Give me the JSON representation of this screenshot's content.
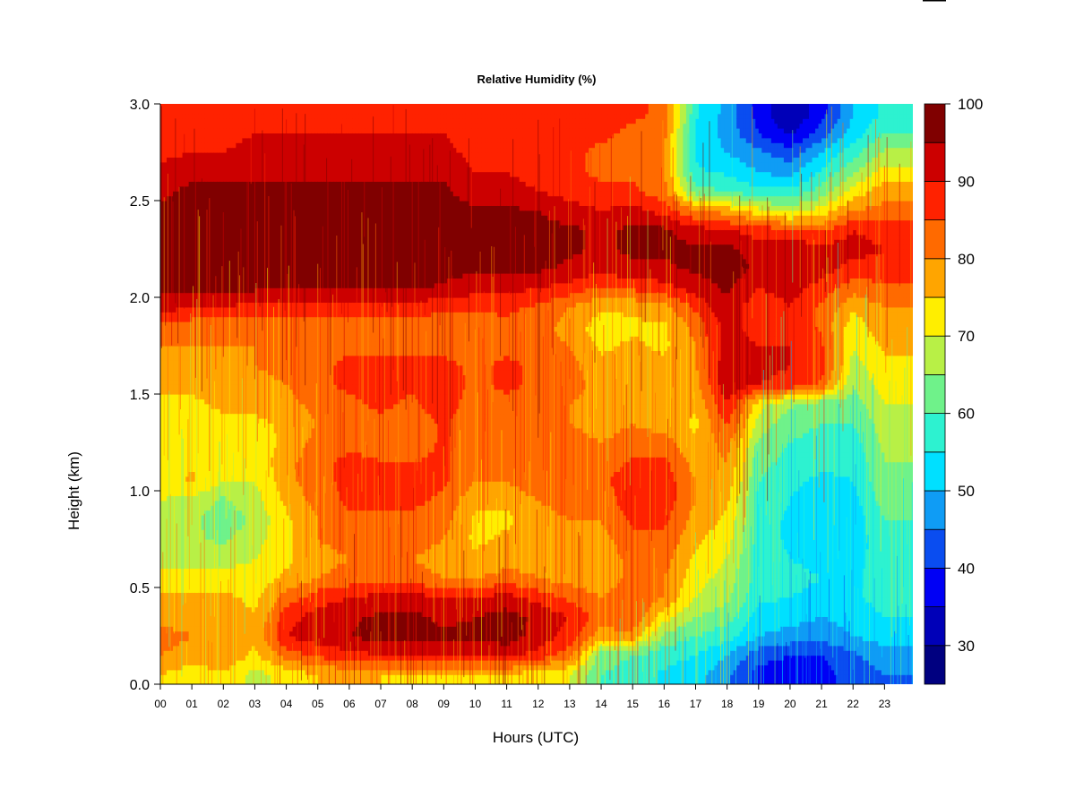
{
  "chart_data": {
    "type": "heatmap",
    "title": "Relative Humidity (%)",
    "xlabel": "Hours (UTC)",
    "ylabel": "Height (km)",
    "xlim": [
      0,
      23.9
    ],
    "ylim": [
      0.0,
      3.0
    ],
    "x_ticks": [
      "00",
      "01",
      "02",
      "03",
      "04",
      "05",
      "06",
      "07",
      "08",
      "09",
      "10",
      "11",
      "12",
      "13",
      "14",
      "15",
      "16",
      "17",
      "18",
      "19",
      "20",
      "21",
      "22",
      "23"
    ],
    "y_ticks": [
      "0.0",
      "0.5",
      "1.0",
      "1.5",
      "2.0",
      "2.5",
      "3.0"
    ],
    "colorbar": {
      "range": [
        25,
        100
      ],
      "tick_labels": [
        "30",
        "40",
        "50",
        "60",
        "70",
        "80",
        "90",
        "100"
      ],
      "levels": [
        {
          "min": 25,
          "max": 30,
          "color": "#000080"
        },
        {
          "min": 30,
          "max": 35,
          "color": "#0000b8"
        },
        {
          "min": 35,
          "max": 40,
          "color": "#0000f5"
        },
        {
          "min": 40,
          "max": 45,
          "color": "#0a4df0"
        },
        {
          "min": 45,
          "max": 50,
          "color": "#0f9cf5"
        },
        {
          "min": 50,
          "max": 55,
          "color": "#00e0ff"
        },
        {
          "min": 55,
          "max": 60,
          "color": "#2df2d0"
        },
        {
          "min": 60,
          "max": 65,
          "color": "#6ff28a"
        },
        {
          "min": 65,
          "max": 70,
          "color": "#b8f046"
        },
        {
          "min": 70,
          "max": 75,
          "color": "#ffee00"
        },
        {
          "min": 75,
          "max": 80,
          "color": "#ffa500"
        },
        {
          "min": 80,
          "max": 85,
          "color": "#ff6a00"
        },
        {
          "min": 85,
          "max": 90,
          "color": "#ff2200"
        },
        {
          "min": 90,
          "max": 95,
          "color": "#cc0000"
        },
        {
          "min": 95,
          "max": 100,
          "color": "#800000"
        }
      ]
    },
    "grid_heights_km": [
      0.05,
      0.15,
      0.25,
      0.35,
      0.45,
      0.55,
      0.65,
      0.75,
      0.85,
      0.95,
      1.05,
      1.15,
      1.25,
      1.35,
      1.45,
      1.55,
      1.65,
      1.75,
      1.85,
      1.95,
      2.05,
      2.15,
      2.25,
      2.35,
      2.45,
      2.55,
      2.65,
      2.75,
      2.85,
      2.95
    ],
    "grid_hours": [
      0,
      1,
      2,
      3,
      4,
      5,
      6,
      7,
      8,
      9,
      10,
      11,
      12,
      13,
      14,
      15,
      16,
      17,
      18,
      19,
      20,
      21,
      22,
      23
    ],
    "rh_values": [
      [
        75,
        72,
        74,
        68,
        72,
        75,
        76,
        75,
        75,
        75,
        74,
        74,
        72,
        70,
        60,
        58,
        54,
        52,
        46,
        38,
        37,
        38,
        42,
        45
      ],
      [
        80,
        78,
        79,
        74,
        82,
        86,
        88,
        90,
        90,
        90,
        90,
        91,
        88,
        82,
        62,
        60,
        57,
        55,
        50,
        42,
        40,
        40,
        44,
        48
      ],
      [
        82,
        80,
        80,
        76,
        90,
        93,
        95,
        97,
        97,
        96,
        96,
        98,
        93,
        88,
        78,
        78,
        64,
        60,
        57,
        50,
        48,
        47,
        50,
        52
      ],
      [
        78,
        78,
        78,
        75,
        88,
        92,
        94,
        96,
        96,
        94,
        95,
        97,
        94,
        90,
        82,
        85,
        72,
        65,
        62,
        53,
        52,
        50,
        52,
        55
      ],
      [
        76,
        76,
        76,
        74,
        82,
        88,
        90,
        92,
        92,
        90,
        90,
        92,
        88,
        84,
        80,
        84,
        80,
        70,
        66,
        56,
        55,
        54,
        54,
        57
      ],
      [
        72,
        72,
        72,
        72,
        76,
        80,
        82,
        82,
        82,
        80,
        80,
        82,
        80,
        78,
        76,
        82,
        80,
        72,
        68,
        58,
        56,
        55,
        54,
        58
      ],
      [
        68,
        68,
        68,
        70,
        74,
        78,
        80,
        80,
        80,
        78,
        76,
        78,
        78,
        76,
        76,
        82,
        82,
        74,
        70,
        58,
        55,
        54,
        53,
        58
      ],
      [
        66,
        66,
        64,
        68,
        74,
        80,
        82,
        82,
        82,
        80,
        74,
        76,
        78,
        78,
        78,
        84,
        84,
        76,
        72,
        58,
        54,
        52,
        52,
        58
      ],
      [
        68,
        66,
        62,
        66,
        74,
        80,
        84,
        84,
        84,
        82,
        74,
        74,
        78,
        80,
        80,
        86,
        86,
        78,
        74,
        58,
        54,
        52,
        52,
        60
      ],
      [
        70,
        68,
        64,
        68,
        76,
        82,
        86,
        86,
        86,
        84,
        76,
        76,
        80,
        82,
        82,
        88,
        88,
        80,
        76,
        58,
        55,
        52,
        53,
        62
      ],
      [
        72,
        76,
        70,
        70,
        78,
        84,
        86,
        86,
        86,
        86,
        80,
        80,
        84,
        84,
        84,
        88,
        88,
        80,
        78,
        60,
        56,
        54,
        55,
        64
      ],
      [
        74,
        74,
        72,
        72,
        78,
        84,
        86,
        85,
        85,
        86,
        82,
        82,
        84,
        84,
        82,
        86,
        86,
        78,
        80,
        62,
        58,
        56,
        56,
        65
      ],
      [
        72,
        72,
        72,
        72,
        76,
        82,
        84,
        84,
        82,
        86,
        80,
        82,
        82,
        82,
        80,
        82,
        82,
        76,
        82,
        64,
        60,
        58,
        58,
        66
      ],
      [
        72,
        72,
        74,
        74,
        76,
        80,
        82,
        84,
        82,
        86,
        80,
        82,
        80,
        80,
        78,
        80,
        78,
        74,
        86,
        68,
        62,
        60,
        60,
        68
      ],
      [
        74,
        74,
        76,
        76,
        78,
        82,
        84,
        86,
        84,
        88,
        82,
        84,
        82,
        80,
        78,
        80,
        78,
        76,
        90,
        72,
        66,
        62,
        62,
        70
      ],
      [
        76,
        76,
        78,
        78,
        80,
        84,
        86,
        86,
        86,
        88,
        84,
        86,
        84,
        82,
        78,
        80,
        78,
        78,
        94,
        90,
        88,
        84,
        66,
        72
      ],
      [
        78,
        78,
        78,
        80,
        82,
        84,
        86,
        86,
        86,
        86,
        84,
        86,
        84,
        82,
        76,
        78,
        76,
        80,
        94,
        92,
        90,
        88,
        68,
        74
      ],
      [
        80,
        80,
        80,
        80,
        82,
        84,
        84,
        84,
        84,
        84,
        82,
        84,
        82,
        80,
        74,
        76,
        74,
        80,
        92,
        90,
        90,
        86,
        70,
        76
      ],
      [
        84,
        82,
        82,
        82,
        82,
        82,
        82,
        82,
        82,
        82,
        82,
        84,
        82,
        78,
        72,
        74,
        74,
        82,
        92,
        88,
        90,
        84,
        72,
        78
      ],
      [
        92,
        90,
        90,
        88,
        88,
        88,
        88,
        88,
        88,
        86,
        86,
        86,
        84,
        80,
        76,
        76,
        78,
        86,
        94,
        86,
        90,
        84,
        76,
        80
      ],
      [
        96,
        96,
        96,
        96,
        96,
        96,
        96,
        96,
        96,
        94,
        92,
        92,
        90,
        88,
        84,
        86,
        88,
        92,
        96,
        90,
        92,
        88,
        82,
        84
      ],
      [
        98,
        98,
        98,
        98,
        98,
        98,
        98,
        98,
        98,
        97,
        96,
        96,
        96,
        94,
        92,
        94,
        94,
        96,
        98,
        94,
        95,
        92,
        88,
        88
      ],
      [
        98,
        98,
        98,
        98,
        98,
        98,
        98,
        98,
        98,
        98,
        97,
        97,
        97,
        96,
        94,
        96,
        96,
        96,
        97,
        92,
        94,
        92,
        92,
        90
      ],
      [
        98,
        98,
        98,
        98,
        98,
        98,
        98,
        98,
        98,
        98,
        97,
        97,
        97,
        96,
        94,
        96,
        96,
        92,
        90,
        88,
        86,
        84,
        90,
        88
      ],
      [
        96,
        97,
        97,
        97,
        98,
        98,
        98,
        98,
        98,
        98,
        96,
        96,
        95,
        92,
        90,
        92,
        88,
        80,
        78,
        72,
        68,
        72,
        80,
        82
      ],
      [
        94,
        96,
        96,
        96,
        96,
        96,
        96,
        96,
        96,
        96,
        92,
        92,
        90,
        88,
        86,
        86,
        82,
        62,
        60,
        56,
        56,
        62,
        72,
        78
      ],
      [
        92,
        94,
        94,
        94,
        94,
        94,
        94,
        94,
        94,
        94,
        90,
        90,
        88,
        86,
        84,
        84,
        80,
        56,
        54,
        50,
        48,
        56,
        64,
        72
      ],
      [
        88,
        90,
        90,
        92,
        92,
        92,
        92,
        92,
        92,
        92,
        88,
        88,
        86,
        86,
        84,
        84,
        80,
        54,
        50,
        46,
        42,
        50,
        58,
        66
      ],
      [
        86,
        88,
        88,
        90,
        90,
        90,
        90,
        90,
        90,
        90,
        86,
        86,
        86,
        86,
        86,
        84,
        82,
        54,
        48,
        40,
        34,
        42,
        52,
        60
      ],
      [
        86,
        88,
        88,
        88,
        88,
        88,
        88,
        88,
        88,
        88,
        86,
        86,
        86,
        86,
        86,
        86,
        84,
        56,
        48,
        38,
        30,
        38,
        50,
        56
      ]
    ]
  }
}
